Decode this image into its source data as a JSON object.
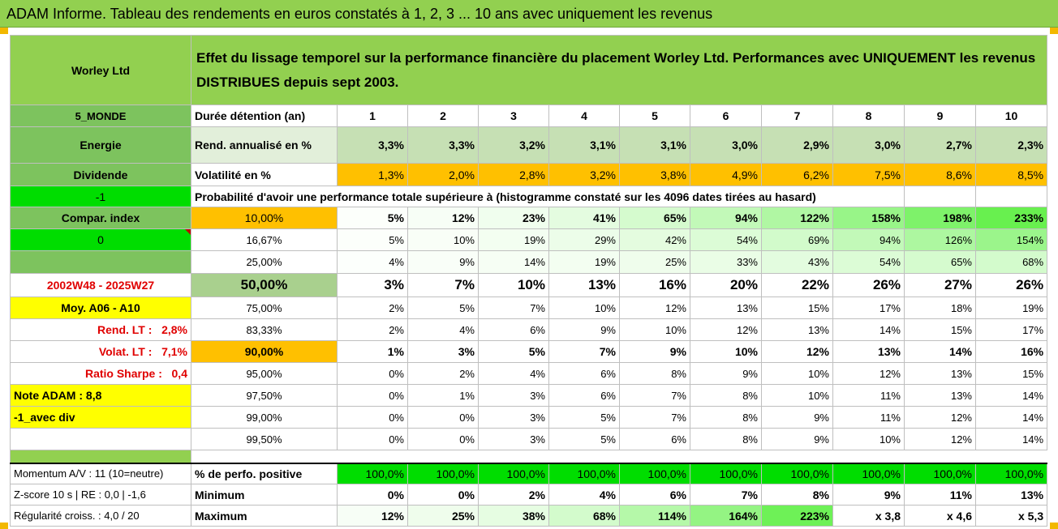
{
  "title": "ADAM Informe. Tableau des rendements en euros constatés à 1, 2, 3 ... 10 ans avec uniquement les revenus",
  "company": "Worley Ltd",
  "description": "Effet du lissage temporel sur la performance financière du placement Worley Ltd. Performances avec UNIQUEMENT les revenus DISTRIBUES depuis sept 2003.",
  "left": {
    "zone": "5_MONDE",
    "sector": "Energie",
    "type": "Dividende",
    "minus_one": "-1",
    "compar_index": "Compar. index",
    "zero": "0",
    "period": "2002W48 - 2025W27",
    "moy": "Moy. A06 - A10",
    "rend_lt": "Rend. LT :",
    "rend_lt_val": "2,8%",
    "volat_lt": "Volat. LT :",
    "volat_lt_val": "7,1%",
    "sharpe": "Ratio Sharpe :",
    "sharpe_val": "0,4",
    "note": "Note ADAM : 8,8",
    "avec_div": "-1_avec div",
    "momentum": "Momentum A/V : 11 (10=neutre)",
    "zscore": "Z-score 10 s | RE : 0,0 | -1,6",
    "regularite": "Régularité croiss. : 4,0 / 20"
  },
  "header": {
    "label": "Durée détention (an)",
    "years": [
      "1",
      "2",
      "3",
      "4",
      "5",
      "6",
      "7",
      "8",
      "9",
      "10"
    ]
  },
  "rend": {
    "label": "Rend. annualisé en %",
    "values": [
      "3,3%",
      "3,3%",
      "3,2%",
      "3,1%",
      "3,1%",
      "3,0%",
      "2,9%",
      "3,0%",
      "2,7%",
      "2,3%"
    ]
  },
  "vol": {
    "label": "Volatilité en %",
    "values": [
      "1,3%",
      "2,0%",
      "2,8%",
      "3,2%",
      "3,8%",
      "4,9%",
      "6,2%",
      "7,5%",
      "8,6%",
      "8,5%"
    ]
  },
  "proba_title": "Probabilité d'avoir une performance totale supérieure à (histogramme constaté sur les 4096 dates tirées au hasard)",
  "prob_rows": [
    {
      "p": "10,00%",
      "values": [
        "5%",
        "12%",
        "23%",
        "41%",
        "65%",
        "94%",
        "122%",
        "158%",
        "198%",
        "233%"
      ]
    },
    {
      "p": "16,67%",
      "values": [
        "5%",
        "10%",
        "19%",
        "29%",
        "42%",
        "54%",
        "69%",
        "94%",
        "126%",
        "154%"
      ]
    },
    {
      "p": "25,00%",
      "values": [
        "4%",
        "9%",
        "14%",
        "19%",
        "25%",
        "33%",
        "43%",
        "54%",
        "65%",
        "68%"
      ]
    },
    {
      "p": "50,00%",
      "values": [
        "3%",
        "7%",
        "10%",
        "13%",
        "16%",
        "20%",
        "22%",
        "26%",
        "27%",
        "26%"
      ]
    },
    {
      "p": "75,00%",
      "values": [
        "2%",
        "5%",
        "7%",
        "10%",
        "12%",
        "13%",
        "15%",
        "17%",
        "18%",
        "19%"
      ]
    },
    {
      "p": "83,33%",
      "values": [
        "2%",
        "4%",
        "6%",
        "9%",
        "10%",
        "12%",
        "13%",
        "14%",
        "15%",
        "17%"
      ]
    },
    {
      "p": "90,00%",
      "values": [
        "1%",
        "3%",
        "5%",
        "7%",
        "9%",
        "10%",
        "12%",
        "13%",
        "14%",
        "16%"
      ]
    },
    {
      "p": "95,00%",
      "values": [
        "0%",
        "2%",
        "4%",
        "6%",
        "8%",
        "9%",
        "10%",
        "12%",
        "13%",
        "15%"
      ]
    },
    {
      "p": "97,50%",
      "values": [
        "0%",
        "1%",
        "3%",
        "6%",
        "7%",
        "8%",
        "10%",
        "11%",
        "13%",
        "14%"
      ]
    },
    {
      "p": "99,00%",
      "values": [
        "0%",
        "0%",
        "3%",
        "5%",
        "7%",
        "8%",
        "9%",
        "11%",
        "12%",
        "14%"
      ]
    },
    {
      "p": "99,50%",
      "values": [
        "0%",
        "0%",
        "3%",
        "5%",
        "6%",
        "8%",
        "9%",
        "10%",
        "12%",
        "14%"
      ]
    }
  ],
  "perf_pos": {
    "label": "% de perfo. positive",
    "values": [
      "100,0%",
      "100,0%",
      "100,0%",
      "100,0%",
      "100,0%",
      "100,0%",
      "100,0%",
      "100,0%",
      "100,0%",
      "100,0%"
    ]
  },
  "minimum": {
    "label": "Minimum",
    "values": [
      "0%",
      "0%",
      "2%",
      "4%",
      "6%",
      "7%",
      "8%",
      "9%",
      "11%",
      "13%"
    ]
  },
  "maximum": {
    "label": "Maximum",
    "values": [
      "12%",
      "25%",
      "38%",
      "68%",
      "114%",
      "164%",
      "223%",
      "x 3,8",
      "x 4,6",
      "x 5,3"
    ]
  },
  "colors": {
    "green": "#92d050",
    "orange": "#ffc000",
    "yellow": "#ffff00",
    "bright_green": "#00dd00"
  }
}
